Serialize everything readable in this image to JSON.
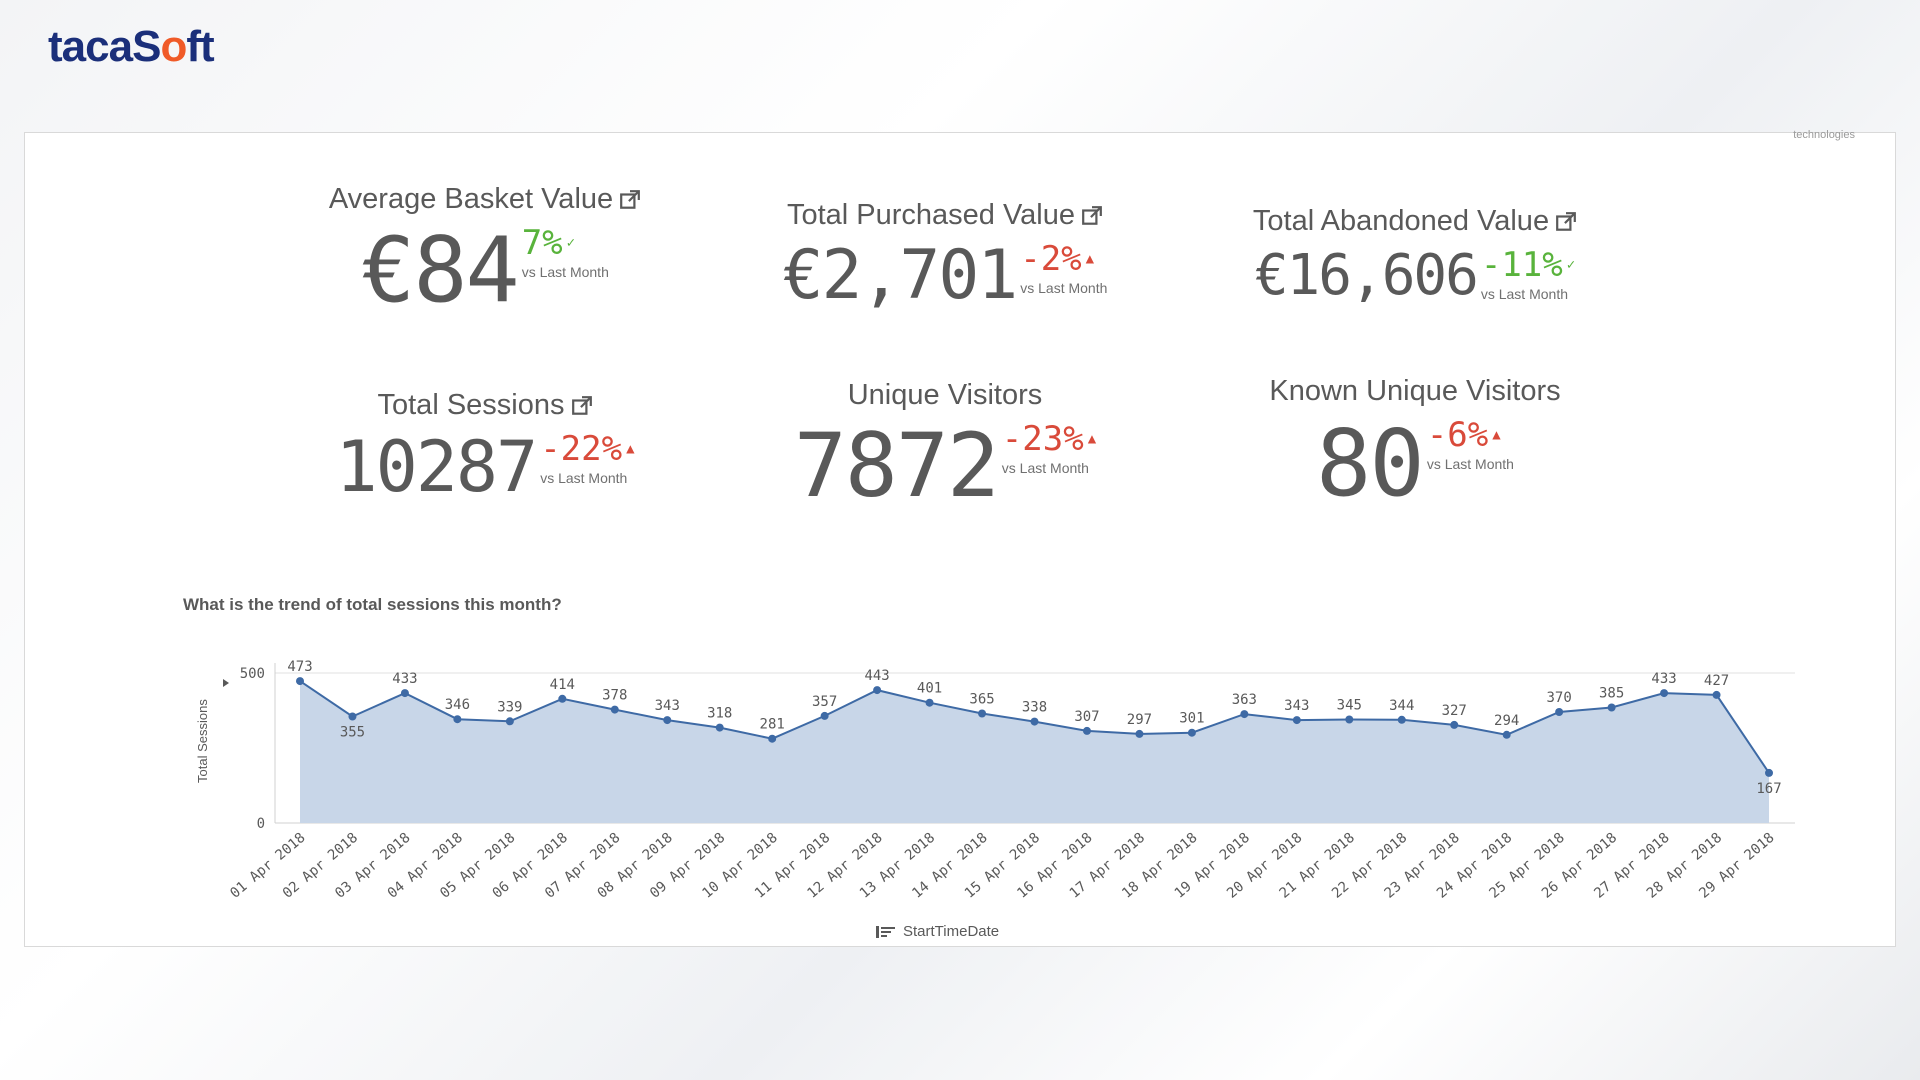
{
  "brand": {
    "logo_text_a": "taca",
    "logo_text_b": "S",
    "logo_text_o": "o",
    "logo_text_c": "ft"
  },
  "watermark": "technologies",
  "colors": {
    "green": "#59b33c",
    "red": "#d94a3a",
    "area": "#c8d6e8",
    "line": "#3e6aa5",
    "brand": "#1b2f7a",
    "accent": "#f05a28"
  },
  "kpis": [
    {
      "title": "Average Basket Value",
      "value": "€84",
      "delta": "7%",
      "trend": "up-good",
      "vs": "vs Last Month",
      "has_link": true
    },
    {
      "title": "Total Purchased Value",
      "value": "€2,701",
      "delta": "-2%",
      "trend": "down-bad",
      "vs": "vs Last Month",
      "has_link": true
    },
    {
      "title": "Total Abandoned Value",
      "value": "€16,606",
      "delta": "-11%",
      "trend": "down-good",
      "vs": "vs Last Month",
      "has_link": true
    },
    {
      "title": "Total Sessions",
      "value": "10287",
      "delta": "-22%",
      "trend": "down-bad",
      "vs": "vs Last Month",
      "has_link": true
    },
    {
      "title": "Unique Visitors",
      "value": "7872",
      "delta": "-23%",
      "trend": "down-bad",
      "vs": "vs Last Month",
      "has_link": false
    },
    {
      "title": "Known Unique Visitors",
      "value": "80",
      "delta": "-6%",
      "trend": "down-bad",
      "vs": "vs Last Month",
      "has_link": false
    }
  ],
  "chart_title": "What is the trend of total sessions this month?",
  "chart_data": {
    "type": "area",
    "title": "What is the trend of total sessions this month?",
    "xlabel": "StartTimeDate",
    "ylabel": "Total Sessions",
    "ylim": [
      0,
      500
    ],
    "yticks": [
      "500",
      "0"
    ],
    "categories": [
      "01 Apr 2018",
      "02 Apr 2018",
      "03 Apr 2018",
      "04 Apr 2018",
      "05 Apr 2018",
      "06 Apr 2018",
      "07 Apr 2018",
      "08 Apr 2018",
      "09 Apr 2018",
      "10 Apr 2018",
      "11 Apr 2018",
      "12 Apr 2018",
      "13 Apr 2018",
      "14 Apr 2018",
      "15 Apr 2018",
      "16 Apr 2018",
      "17 Apr 2018",
      "18 Apr 2018",
      "19 Apr 2018",
      "20 Apr 2018",
      "21 Apr 2018",
      "22 Apr 2018",
      "23 Apr 2018",
      "24 Apr 2018",
      "25 Apr 2018",
      "26 Apr 2018",
      "27 Apr 2018",
      "28 Apr 2018",
      "29 Apr 2018"
    ],
    "values": [
      473,
      355,
      433,
      346,
      339,
      414,
      378,
      343,
      318,
      281,
      357,
      443,
      401,
      365,
      338,
      307,
      297,
      301,
      363,
      343,
      345,
      344,
      327,
      294,
      370,
      385,
      433,
      427,
      167
    ],
    "grid": true
  }
}
